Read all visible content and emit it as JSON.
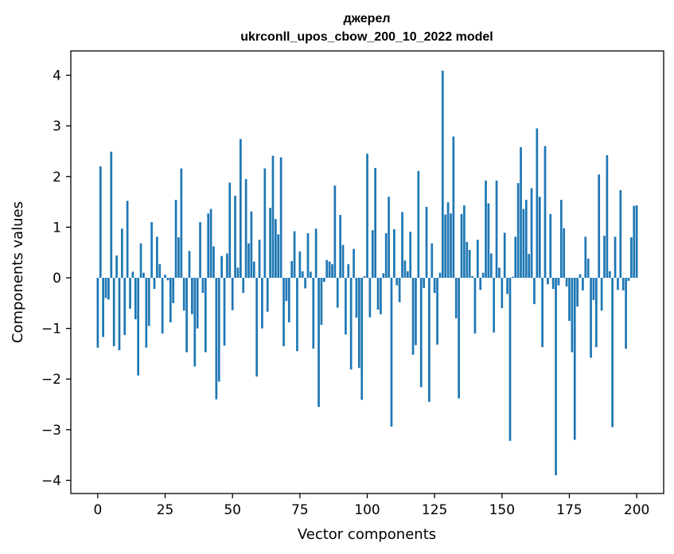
{
  "chart_data": {
    "type": "bar",
    "title_line1": "джерел",
    "title_line2": "ukrconll_upos_cbow_200_10_2022 model",
    "xlabel": "Vector components",
    "ylabel": "Components values",
    "xlim": [
      -10,
      210
    ],
    "ylim": [
      -4.26,
      4.48
    ],
    "xticks": [
      0,
      25,
      50,
      75,
      100,
      125,
      150,
      175,
      200
    ],
    "yticks": [
      4,
      3,
      2,
      1,
      0,
      -1,
      -2,
      -3,
      -4
    ],
    "ytick_labels": [
      "4",
      "3",
      "2",
      "1",
      "0",
      "−1",
      "−2",
      "−3",
      "−4"
    ],
    "bar_color": "#1f77b4",
    "values": [
      -1.38,
      2.2,
      -1.17,
      -0.4,
      -0.43,
      2.49,
      -1.35,
      0.44,
      -1.43,
      0.97,
      -1.13,
      1.52,
      -0.61,
      0.12,
      -0.82,
      -1.93,
      0.68,
      0.1,
      -1.38,
      -0.95,
      1.1,
      -0.22,
      0.81,
      0.27,
      -1.1,
      0.06,
      -0.05,
      -0.88,
      -0.5,
      1.54,
      0.8,
      2.16,
      -0.65,
      -1.47,
      0.53,
      -0.72,
      -1.75,
      -1.0,
      1.1,
      -0.3,
      -1.47,
      1.27,
      1.36,
      0.62,
      -2.4,
      -2.05,
      0.43,
      -1.34,
      0.48,
      1.88,
      -0.64,
      1.62,
      0.2,
      2.74,
      -0.3,
      1.95,
      0.68,
      1.31,
      0.32,
      -1.95,
      0.75,
      -1.0,
      2.16,
      -0.67,
      1.38,
      2.41,
      1.16,
      0.86,
      2.38,
      -1.35,
      -0.46,
      -0.88,
      0.33,
      0.92,
      -1.45,
      0.52,
      0.13,
      -0.21,
      0.88,
      0.12,
      -1.4,
      0.97,
      -2.55,
      -0.93,
      -0.08,
      0.35,
      0.32,
      0.27,
      1.82,
      -0.59,
      1.24,
      0.65,
      -1.12,
      0.27,
      -1.81,
      0.57,
      -0.79,
      -1.78,
      -2.41,
      0.03,
      2.45,
      -0.78,
      0.94,
      2.17,
      -0.63,
      -0.72,
      0.09,
      0.88,
      1.6,
      -2.94,
      0.96,
      -0.15,
      -0.48,
      1.3,
      0.34,
      0.13,
      0.91,
      -1.52,
      -1.33,
      2.11,
      -2.16,
      -0.2,
      1.4,
      -2.45,
      0.68,
      -0.3,
      -1.32,
      0.1,
      4.09,
      1.25,
      1.49,
      1.27,
      2.79,
      -0.8,
      -2.38,
      1.26,
      1.43,
      0.71,
      0.55,
      0.03,
      -1.1,
      0.75,
      -0.24,
      0.1,
      1.92,
      1.47,
      0.48,
      -1.08,
      1.92,
      0.2,
      -0.6,
      0.89,
      -0.32,
      -3.22,
      0.02,
      0.81,
      1.87,
      2.58,
      1.36,
      1.54,
      0.47,
      1.77,
      -0.52,
      2.95,
      1.6,
      -1.37,
      2.6,
      -0.13,
      1.26,
      -0.22,
      -3.9,
      -0.15,
      1.54,
      0.98,
      -0.17,
      -0.85,
      -1.47,
      -3.2,
      -0.57,
      0.07,
      -0.25,
      0.81,
      0.38,
      -1.58,
      -0.44,
      -1.37,
      2.04,
      -0.65,
      0.83,
      2.42,
      0.13,
      -2.95,
      0.81,
      -0.24,
      1.73,
      -0.25,
      -1.4,
      -0.06,
      0.8,
      1.42,
      1.43
    ]
  }
}
